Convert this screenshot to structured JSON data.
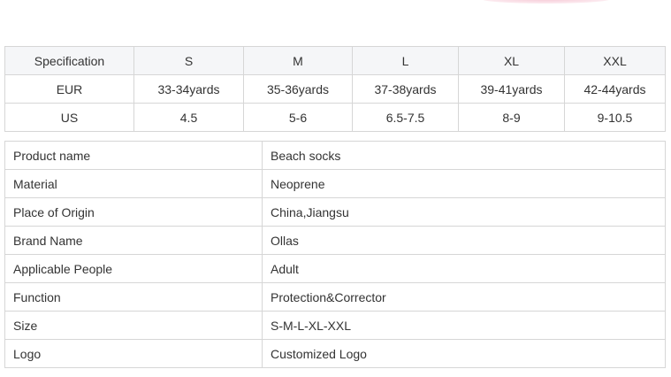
{
  "size_table": {
    "header": [
      "Specification",
      "S",
      "M",
      "L",
      "XL",
      "XXL"
    ],
    "rows": [
      [
        "EUR",
        "33-34yards",
        "35-36yards",
        "37-38yards",
        "39-41yards",
        "42-44yards"
      ],
      [
        "US",
        "4.5",
        "5-6",
        "6.5-7.5",
        "8-9",
        "9-10.5"
      ]
    ]
  },
  "spec_table": [
    [
      "Product name",
      "Beach socks"
    ],
    [
      "Material",
      "Neoprene"
    ],
    [
      "Place of Origin",
      "China,Jiangsu"
    ],
    [
      "Brand Name",
      "Ollas"
    ],
    [
      "Applicable People",
      "Adult"
    ],
    [
      "Function",
      "Protection&Corrector"
    ],
    [
      "Size",
      "S-M-L-XL-XXL"
    ],
    [
      "Logo",
      "Customized Logo"
    ]
  ]
}
